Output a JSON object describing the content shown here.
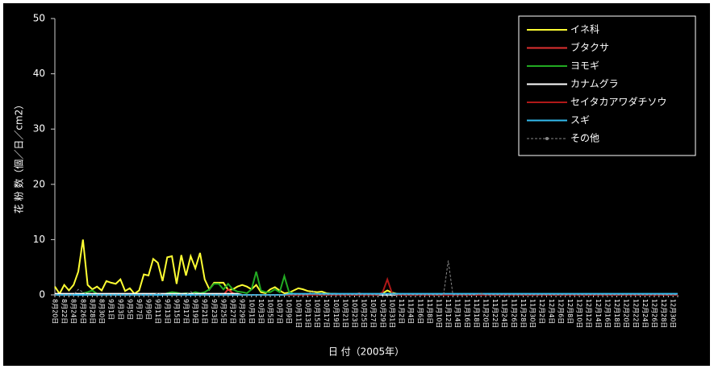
{
  "chart_data": {
    "type": "line",
    "ylabel": "花 粉 数（個／日／cm2）",
    "xlabel": "日 付（2005年）",
    "categories": [
      "8月20日",
      null,
      "8月22日",
      null,
      "8月24日",
      null,
      "8月26日",
      null,
      "8月28日",
      null,
      "8月30日",
      null,
      "9月1日",
      null,
      "9月3日",
      null,
      "9月5日",
      null,
      "9月7日",
      null,
      "9月9日",
      null,
      "9月11日",
      null,
      "9月13日",
      null,
      "9月15日",
      null,
      "9月17日",
      null,
      "9月19日",
      null,
      "9月21日",
      null,
      "9月23日",
      null,
      "9月25日",
      null,
      "9月27日",
      null,
      "9月29日",
      null,
      "10月1日",
      null,
      "10月3日",
      null,
      "10月5日",
      null,
      "10月7日",
      null,
      "10月9日",
      null,
      "10月11日",
      null,
      "10月13日",
      null,
      "10月15日",
      null,
      "10月17日",
      null,
      "10月19日",
      null,
      "10月21日",
      null,
      "10月23日",
      null,
      "10月25日",
      null,
      "10月27日",
      null,
      "10月29日",
      null,
      "10月31日",
      null,
      "11月2日",
      null,
      "11月4日",
      null,
      "11月6日",
      null,
      "11月8日",
      null,
      "11月10日",
      null,
      "11月12日",
      null,
      "11月14日",
      null,
      "11月16日",
      null,
      "11月18日",
      null,
      "11月20日",
      null,
      "11月22日",
      null,
      "11月24日",
      null,
      "11月26日",
      null,
      "11月28日",
      null,
      "11月30日",
      null,
      "12月2日",
      null,
      "12月4日",
      null,
      "12月6日",
      null,
      "12月8日",
      null,
      "12月10日",
      null,
      "12月12日",
      null,
      "12月14日",
      null,
      "12月16日",
      null,
      "12月18日",
      null,
      "12月20日",
      null,
      "12月22日",
      null,
      "12月24日",
      null,
      "12月26日",
      null,
      "12月28日",
      null,
      "12月30日",
      null
    ],
    "series": [
      {
        "name": "イネ科",
        "color": "#ffff33",
        "values": [
          1.5,
          0.2,
          1.8,
          0.8,
          1.8,
          4.2,
          10,
          1.8,
          1.0,
          1.5,
          0.8,
          2.5,
          2.2,
          2.0,
          2.8,
          0.7,
          1.2,
          0.2,
          0.8,
          3.7,
          3.5,
          6.5,
          5.8,
          2.5,
          6.8,
          7.0,
          2.0,
          7.2,
          3.5,
          7.0,
          4.8,
          7.6,
          2.8,
          1.0,
          2.2,
          2.2,
          2.2,
          0.9,
          1.0,
          1.5,
          1.8,
          1.5,
          1.0,
          1.8,
          0.5,
          0.3,
          1.0,
          1.4,
          0.8,
          0.3,
          0.4,
          0.8,
          1.2,
          1.0,
          0.7,
          0.6,
          0.5,
          0.6,
          0.3,
          0.2,
          0.2,
          0.1,
          0.1,
          0.1,
          0.1,
          0.1,
          0.1,
          0.1,
          0.1,
          0.1,
          0.3,
          0.8,
          0.4,
          0.2,
          0.1,
          0.1,
          0.1,
          0.1,
          0.1,
          0.1,
          0.1,
          0.1,
          0.1,
          0.1,
          0.1,
          0.1,
          0.1,
          0.1,
          0.1,
          0.1,
          0,
          0,
          0,
          0,
          0,
          0,
          0,
          0,
          0,
          0,
          0,
          0,
          0,
          0,
          0,
          0,
          0,
          0,
          0,
          0,
          0,
          0,
          0,
          0,
          0,
          0,
          0,
          0,
          0,
          0,
          0,
          0,
          0,
          0,
          0,
          0,
          0,
          0,
          0,
          0,
          0,
          0,
          0,
          0
        ]
      },
      {
        "name": "ブタクサ",
        "color": "#e03030",
        "values": [
          0,
          0,
          0,
          0,
          0,
          0,
          0,
          0,
          0,
          0,
          0,
          0,
          0,
          0,
          0,
          0,
          0,
          0,
          0,
          0,
          0,
          0,
          0,
          0,
          0,
          0,
          0,
          0,
          0,
          0,
          0,
          0,
          0,
          0,
          0,
          0,
          0,
          1.0,
          0.3,
          0,
          0,
          0,
          0,
          0,
          0,
          0,
          0,
          0,
          0,
          0,
          0,
          0,
          0,
          0,
          0,
          0,
          0,
          0,
          0,
          0,
          0,
          0,
          0,
          0,
          0,
          0.3,
          0,
          0,
          0,
          0,
          0,
          0,
          0,
          0,
          0,
          0,
          0,
          0,
          0,
          0,
          0,
          0,
          0,
          0,
          0,
          0,
          0,
          0,
          0,
          0,
          0,
          0,
          0,
          0,
          0,
          0,
          0,
          0,
          0,
          0,
          0,
          0,
          0,
          0,
          0,
          0,
          0,
          0,
          0,
          0,
          0,
          0,
          0,
          0,
          0,
          0,
          0,
          0,
          0,
          0,
          0,
          0,
          0,
          0,
          0,
          0,
          0,
          0,
          0,
          0,
          0,
          0,
          0,
          0
        ]
      },
      {
        "name": "ヨモギ",
        "color": "#22aa22",
        "values": [
          0,
          0,
          0,
          0,
          0,
          0,
          0.3,
          0.5,
          0.8,
          0.2,
          0.1,
          0,
          0,
          0.1,
          0,
          0,
          0.1,
          0,
          0.1,
          0.2,
          0.1,
          0.2,
          0.1,
          0,
          0.3,
          0.5,
          0.4,
          0.2,
          0.3,
          0.2,
          0.5,
          0.3,
          0.5,
          1.0,
          2.0,
          2.0,
          1.0,
          2.0,
          1.0,
          0.6,
          0.5,
          0.3,
          1.0,
          4.2,
          0.8,
          0.5,
          0.5,
          1.0,
          0.5,
          3.4,
          0.5,
          0.2,
          0.1,
          0.1,
          0.1,
          0,
          0,
          0,
          0,
          0,
          0,
          0,
          0,
          0,
          0,
          0,
          0,
          0,
          0,
          0,
          0,
          0,
          0,
          0,
          0,
          0,
          0,
          0,
          0,
          0,
          0,
          0,
          0,
          0,
          0,
          0,
          0,
          0,
          0,
          0,
          0,
          0,
          0,
          0,
          0,
          0,
          0,
          0,
          0,
          0,
          0,
          0,
          0,
          0,
          0,
          0,
          0,
          0,
          0,
          0,
          0,
          0,
          0,
          0,
          0,
          0,
          0,
          0,
          0,
          0,
          0,
          0,
          0,
          0,
          0,
          0,
          0,
          0,
          0,
          0,
          0,
          0,
          0,
          0
        ]
      },
      {
        "name": "カナムグラ",
        "color": "#ffffff",
        "values": [
          0.2,
          0.2,
          0.2,
          0.2,
          0.2,
          0.2,
          0.2,
          0.2,
          0.2,
          0.2,
          0.2,
          0.2,
          0.2,
          0.2,
          0.2,
          0.2,
          0.2,
          0.2,
          0.2,
          0.2,
          0.2,
          0.2,
          0.2,
          0.2,
          0.2,
          0.2,
          0.2,
          0.2,
          0.2,
          0.2,
          0.2,
          0.2,
          0.2,
          0.2,
          0.2,
          0.2,
          0.2,
          0.2,
          0.2,
          0.2,
          0,
          0,
          0,
          0,
          0,
          0,
          0,
          0,
          0,
          0,
          0,
          0,
          0,
          0,
          0,
          0,
          0,
          0,
          0,
          0,
          0,
          0,
          0,
          0,
          0,
          0,
          0,
          0,
          0,
          0,
          0,
          0,
          0,
          0,
          0,
          0,
          0,
          0,
          0,
          0,
          0,
          0,
          0,
          0,
          0,
          0,
          0,
          0,
          0,
          0,
          0,
          0,
          0,
          0,
          0,
          0,
          0,
          0,
          0,
          0,
          0,
          0,
          0,
          0,
          0,
          0,
          0,
          0,
          0,
          0,
          0,
          0,
          0,
          0,
          0,
          0,
          0,
          0,
          0,
          0,
          0,
          0,
          0,
          0,
          0,
          0,
          0,
          0,
          0,
          0,
          0,
          0,
          0,
          0
        ]
      },
      {
        "name": "セイタカアワダチソウ",
        "color": "#b01818",
        "values": [
          0,
          0,
          0,
          0,
          0,
          0,
          0,
          0,
          0,
          0,
          0,
          0,
          0,
          0,
          0,
          0,
          0,
          0,
          0,
          0,
          0,
          0,
          0,
          0,
          0,
          0,
          0,
          0,
          0,
          0,
          0,
          0,
          0,
          0,
          0,
          0,
          0,
          0,
          0,
          0,
          0,
          0,
          0,
          0,
          0,
          0,
          0,
          0,
          0,
          0,
          0,
          0,
          0,
          0,
          0,
          0,
          0,
          0,
          0,
          0,
          0,
          0,
          0,
          0,
          0,
          0,
          0,
          0,
          0,
          0,
          0.5,
          2.8,
          0.3,
          0,
          0,
          0,
          0,
          0,
          0,
          0,
          0,
          0,
          0,
          0,
          0,
          0,
          0,
          0,
          0,
          0,
          0,
          0,
          0,
          0,
          0,
          0,
          0,
          0,
          0,
          0,
          0,
          0,
          0,
          0,
          0,
          0,
          0,
          0,
          0,
          0,
          0,
          0,
          0,
          0,
          0,
          0,
          0,
          0,
          0,
          0,
          0,
          0,
          0,
          0,
          0,
          0,
          0,
          0,
          0,
          0,
          0,
          0,
          0,
          0
        ]
      },
      {
        "name": "スギ",
        "color": "#33bbee",
        "values": [
          0,
          0,
          0,
          0,
          0,
          0,
          0,
          0,
          0,
          0,
          0,
          0,
          0,
          0,
          0,
          0,
          0,
          0,
          0,
          0,
          0,
          0,
          0,
          0,
          0,
          0,
          0,
          0,
          0,
          0,
          0,
          0,
          0,
          0,
          0,
          0,
          0,
          0,
          0,
          0,
          0,
          0,
          0,
          0,
          0,
          0,
          0,
          0,
          0,
          0,
          0.2,
          0.2,
          0.2,
          0.2,
          0.2,
          0.2,
          0.2,
          0.2,
          0.2,
          0.2,
          0.2,
          0.2,
          0.2,
          0.2,
          0.2,
          0.2,
          0.2,
          0.2,
          0.2,
          0.2,
          0.2,
          0.2,
          0.2,
          0.2,
          0.2,
          0.2,
          0.2,
          0.2,
          0.2,
          0.2,
          0.2,
          0.2,
          0.2,
          0.2,
          0.2,
          0.2,
          0.2,
          0.2,
          0.2,
          0.2,
          0.2,
          0.2,
          0.2,
          0.2,
          0.2,
          0.2,
          0.2,
          0.2,
          0.2,
          0.2,
          0.2,
          0.2,
          0.2,
          0.2,
          0.2,
          0.2,
          0.2,
          0.2,
          0.2,
          0.2,
          0.2,
          0.2,
          0.2,
          0.2,
          0.2,
          0.2,
          0.2,
          0.2,
          0.2,
          0.2,
          0.2,
          0.2,
          0.2,
          0.2,
          0.2,
          0.2,
          0.2,
          0.2,
          0.2,
          0.2,
          0.2,
          0.2,
          0.2,
          0.2
        ]
      },
      {
        "name": "その他",
        "color": "#888888",
        "dashed": true,
        "values": [
          0,
          0,
          0,
          0,
          0,
          1.0,
          0.5,
          0,
          0,
          0,
          0,
          0,
          0,
          0,
          0,
          0,
          0,
          0,
          0,
          0,
          0,
          0,
          0.3,
          0,
          0,
          0,
          0,
          0,
          0,
          0.6,
          0,
          0,
          0,
          0,
          0,
          0,
          0,
          0,
          0,
          0,
          0,
          0,
          0,
          0,
          0,
          0,
          0,
          0,
          0,
          0,
          0,
          0,
          0,
          0,
          0,
          0.8,
          0,
          0,
          0,
          0,
          0,
          0,
          0,
          0,
          0,
          0,
          0,
          0,
          0,
          0,
          0,
          0,
          0,
          0,
          0,
          0,
          0,
          0,
          0,
          0,
          0,
          0,
          0,
          0,
          6.2,
          0,
          0,
          0,
          0,
          0,
          0,
          0.3,
          0,
          0,
          0,
          0,
          0,
          0,
          0,
          0,
          0,
          0,
          0,
          0,
          0,
          0,
          0,
          0,
          0,
          0,
          0,
          0,
          0,
          0,
          0,
          0,
          0,
          0,
          0,
          0,
          0,
          0,
          0,
          0,
          0,
          0,
          0,
          0,
          0,
          0,
          0,
          0,
          0,
          0
        ]
      }
    ],
    "ylim": [
      0,
      50
    ],
    "yticks": [
      0,
      10,
      20,
      30,
      40,
      50
    ],
    "legend": "upper right"
  }
}
